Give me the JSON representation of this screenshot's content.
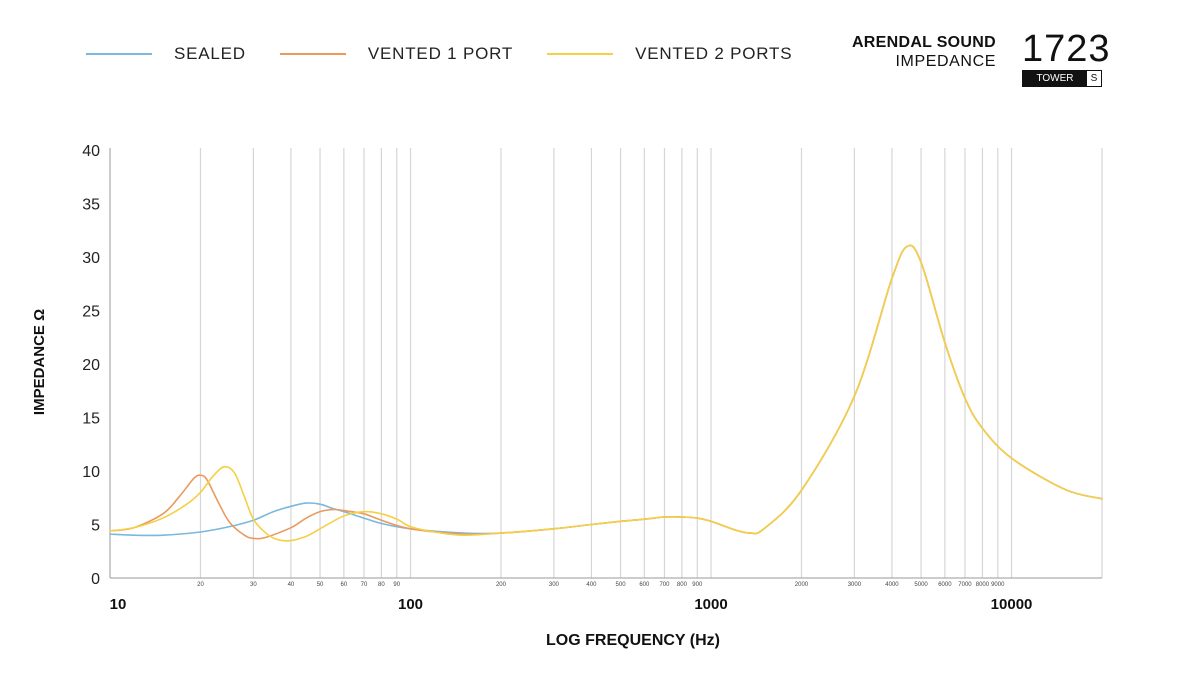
{
  "header": {
    "brand": "ARENDAL SOUND",
    "subtitle": "IMPEDANCE",
    "model_number": "1723",
    "model_tag_1": "TOWER",
    "model_tag_2": "S"
  },
  "legend": [
    {
      "label": "SEALED",
      "color": "#7ab8de"
    },
    {
      "label": "VENTED 1 PORT",
      "color": "#eb9a5e"
    },
    {
      "label": "VENTED 2 PORTS",
      "color": "#f5cf45"
    }
  ],
  "chart_data": {
    "type": "line",
    "title": "",
    "xlabel": "LOG FREQUENCY (Hz)",
    "ylabel": "IMPEDANCE Ω",
    "x_scale": "log",
    "xlim": [
      10,
      20000
    ],
    "ylim": [
      0,
      40
    ],
    "yticks": [
      "0",
      "5",
      "10",
      "15",
      "20",
      "25",
      "30",
      "35",
      "40"
    ],
    "xticks_major": [
      "10",
      "100",
      "1000",
      "10000"
    ],
    "xticks_minor": [
      "20",
      "30",
      "40",
      "50",
      "60",
      "70",
      "80",
      "90",
      "200",
      "300",
      "400",
      "500",
      "600",
      "700",
      "800",
      "900",
      "2000",
      "3000",
      "4000",
      "5000",
      "6000",
      "7000",
      "8000",
      "9000"
    ],
    "grid": "vertical",
    "legend_position": "top",
    "series": [
      {
        "name": "SEALED",
        "color": "#7ab8de",
        "points": [
          [
            10,
            4.1
          ],
          [
            12,
            4.0
          ],
          [
            15,
            4.0
          ],
          [
            20,
            4.3
          ],
          [
            25,
            4.8
          ],
          [
            30,
            5.4
          ],
          [
            35,
            6.2
          ],
          [
            40,
            6.7
          ],
          [
            45,
            7.0
          ],
          [
            50,
            6.9
          ],
          [
            55,
            6.5
          ],
          [
            60,
            6.2
          ],
          [
            70,
            5.6
          ],
          [
            80,
            5.1
          ],
          [
            100,
            4.6
          ],
          [
            150,
            4.2
          ],
          [
            200,
            4.2
          ],
          [
            300,
            4.6
          ],
          [
            400,
            5.0
          ],
          [
            500,
            5.3
          ],
          [
            600,
            5.5
          ],
          [
            700,
            5.7
          ],
          [
            800,
            5.7
          ],
          [
            900,
            5.6
          ],
          [
            1000,
            5.3
          ],
          [
            1200,
            4.5
          ],
          [
            1350,
            4.2
          ],
          [
            1500,
            4.6
          ],
          [
            2000,
            8.2
          ],
          [
            3000,
            17.0
          ],
          [
            4000,
            28.0
          ],
          [
            4500,
            31.0
          ],
          [
            5000,
            29.5
          ],
          [
            6000,
            22.0
          ],
          [
            7000,
            16.8
          ],
          [
            8000,
            14.0
          ],
          [
            10000,
            11.2
          ],
          [
            15000,
            8.3
          ],
          [
            20000,
            7.4
          ]
        ]
      },
      {
        "name": "VENTED 1 PORT",
        "color": "#eb9a5e",
        "points": [
          [
            10,
            4.4
          ],
          [
            12,
            4.7
          ],
          [
            15,
            6.0
          ],
          [
            17,
            7.6
          ],
          [
            19,
            9.3
          ],
          [
            20,
            9.6
          ],
          [
            21,
            9.2
          ],
          [
            23,
            7.0
          ],
          [
            25,
            5.2
          ],
          [
            28,
            4.0
          ],
          [
            30,
            3.7
          ],
          [
            33,
            3.8
          ],
          [
            40,
            4.7
          ],
          [
            45,
            5.6
          ],
          [
            50,
            6.2
          ],
          [
            55,
            6.4
          ],
          [
            60,
            6.3
          ],
          [
            70,
            6.0
          ],
          [
            80,
            5.4
          ],
          [
            100,
            4.6
          ],
          [
            150,
            4.1
          ],
          [
            200,
            4.2
          ],
          [
            300,
            4.6
          ],
          [
            400,
            5.0
          ],
          [
            500,
            5.3
          ],
          [
            600,
            5.5
          ],
          [
            700,
            5.7
          ],
          [
            800,
            5.7
          ],
          [
            900,
            5.6
          ],
          [
            1000,
            5.3
          ],
          [
            1200,
            4.5
          ],
          [
            1350,
            4.2
          ],
          [
            1500,
            4.6
          ],
          [
            2000,
            8.2
          ],
          [
            3000,
            17.0
          ],
          [
            4000,
            28.0
          ],
          [
            4500,
            31.0
          ],
          [
            5000,
            29.5
          ],
          [
            6000,
            22.0
          ],
          [
            7000,
            16.8
          ],
          [
            8000,
            14.0
          ],
          [
            10000,
            11.2
          ],
          [
            15000,
            8.3
          ],
          [
            20000,
            7.4
          ]
        ]
      },
      {
        "name": "VENTED 2 PORTS",
        "color": "#f5cf45",
        "points": [
          [
            10,
            4.4
          ],
          [
            12,
            4.7
          ],
          [
            15,
            5.6
          ],
          [
            18,
            6.9
          ],
          [
            20,
            8.0
          ],
          [
            22,
            9.5
          ],
          [
            24,
            10.4
          ],
          [
            26,
            9.8
          ],
          [
            28,
            7.6
          ],
          [
            30,
            5.5
          ],
          [
            33,
            4.2
          ],
          [
            36,
            3.6
          ],
          [
            40,
            3.5
          ],
          [
            45,
            3.9
          ],
          [
            50,
            4.6
          ],
          [
            60,
            5.8
          ],
          [
            70,
            6.2
          ],
          [
            80,
            6.0
          ],
          [
            90,
            5.5
          ],
          [
            100,
            4.8
          ],
          [
            120,
            4.3
          ],
          [
            150,
            4.0
          ],
          [
            200,
            4.2
          ],
          [
            300,
            4.6
          ],
          [
            400,
            5.0
          ],
          [
            500,
            5.3
          ],
          [
            600,
            5.5
          ],
          [
            700,
            5.7
          ],
          [
            800,
            5.7
          ],
          [
            900,
            5.6
          ],
          [
            1000,
            5.3
          ],
          [
            1200,
            4.5
          ],
          [
            1350,
            4.2
          ],
          [
            1500,
            4.6
          ],
          [
            2000,
            8.2
          ],
          [
            3000,
            17.0
          ],
          [
            4000,
            28.0
          ],
          [
            4500,
            31.0
          ],
          [
            5000,
            29.5
          ],
          [
            6000,
            22.0
          ],
          [
            7000,
            16.8
          ],
          [
            8000,
            14.0
          ],
          [
            10000,
            11.2
          ],
          [
            15000,
            8.3
          ],
          [
            20000,
            7.4
          ]
        ]
      }
    ]
  }
}
